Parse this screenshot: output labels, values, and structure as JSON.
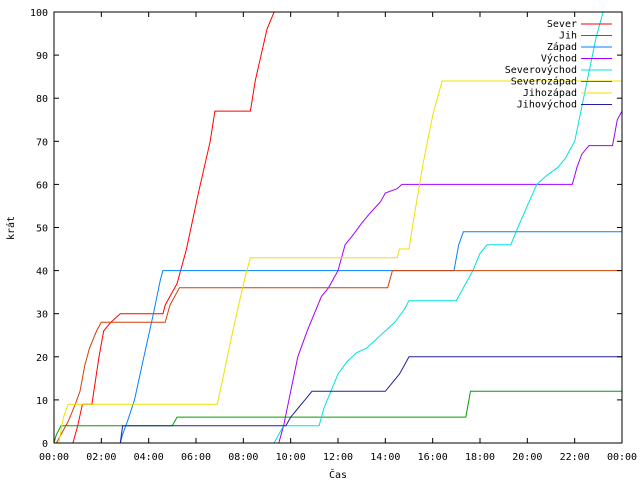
{
  "chart_data": {
    "type": "line",
    "title": "",
    "xlabel": "Čas",
    "ylabel": "krát",
    "xlim": [
      0,
      24
    ],
    "ylim": [
      0,
      100
    ],
    "x_unit": "hours",
    "xticks": [
      "00:00",
      "02:00",
      "04:00",
      "06:00",
      "08:00",
      "10:00",
      "12:00",
      "14:00",
      "16:00",
      "18:00",
      "20:00",
      "22:00",
      "00:00"
    ],
    "yticks": [
      0,
      10,
      20,
      30,
      40,
      50,
      60,
      70,
      80,
      90,
      100
    ],
    "grid": false,
    "legend_position": "top-right",
    "series": [
      {
        "name": "Sever",
        "color": "#ff0000",
        "points": [
          [
            0,
            0
          ],
          [
            0.8,
            0
          ],
          [
            1.0,
            4
          ],
          [
            1.2,
            9
          ],
          [
            1.6,
            9
          ],
          [
            1.9,
            20
          ],
          [
            2.1,
            26
          ],
          [
            2.4,
            28
          ],
          [
            2.6,
            29
          ],
          [
            2.8,
            30
          ],
          [
            4.6,
            30
          ],
          [
            4.7,
            32
          ],
          [
            5.0,
            35
          ],
          [
            5.2,
            37
          ],
          [
            5.6,
            45
          ],
          [
            6.1,
            58
          ],
          [
            6.6,
            70
          ],
          [
            6.8,
            77
          ],
          [
            8.3,
            77
          ],
          [
            8.5,
            84
          ],
          [
            9.0,
            96
          ],
          [
            9.3,
            100
          ]
        ]
      },
      {
        "name": "Jih",
        "color": "#00a000",
        "points": [
          [
            0,
            0
          ],
          [
            0.1,
            2
          ],
          [
            0.3,
            4
          ],
          [
            5.0,
            4
          ],
          [
            5.2,
            6
          ],
          [
            17.4,
            6
          ],
          [
            17.6,
            12
          ],
          [
            24,
            12
          ]
        ]
      },
      {
        "name": "Západ",
        "color": "#0080ff",
        "points": [
          [
            0,
            0
          ],
          [
            2.8,
            0
          ],
          [
            2.9,
            2
          ],
          [
            3.1,
            5
          ],
          [
            3.4,
            10
          ],
          [
            3.8,
            20
          ],
          [
            4.2,
            30
          ],
          [
            4.5,
            38
          ],
          [
            4.6,
            40
          ],
          [
            16.9,
            40
          ],
          [
            17.1,
            46
          ],
          [
            17.3,
            49
          ],
          [
            24,
            49
          ]
        ]
      },
      {
        "name": "Východ",
        "color": "#a000ff",
        "points": [
          [
            0,
            0
          ],
          [
            9.5,
            0
          ],
          [
            9.7,
            4
          ],
          [
            10.0,
            12
          ],
          [
            10.3,
            20
          ],
          [
            10.7,
            26
          ],
          [
            11.0,
            30
          ],
          [
            11.3,
            34
          ],
          [
            11.6,
            36
          ],
          [
            12.0,
            40
          ],
          [
            12.3,
            46
          ],
          [
            12.6,
            48
          ],
          [
            13.0,
            51
          ],
          [
            13.3,
            53
          ],
          [
            13.8,
            56
          ],
          [
            14.0,
            58
          ],
          [
            14.5,
            59
          ],
          [
            14.7,
            60
          ],
          [
            21.9,
            60
          ],
          [
            22.1,
            64
          ],
          [
            22.3,
            67
          ],
          [
            22.6,
            69
          ],
          [
            23.6,
            69
          ],
          [
            23.8,
            75
          ],
          [
            24,
            77
          ]
        ]
      },
      {
        "name": "Severovýchod",
        "color": "#00e0e0",
        "points": [
          [
            0,
            0
          ],
          [
            9.3,
            0
          ],
          [
            9.5,
            2
          ],
          [
            9.7,
            4
          ],
          [
            11.2,
            4
          ],
          [
            11.4,
            8
          ],
          [
            11.7,
            12
          ],
          [
            12.0,
            16
          ],
          [
            12.4,
            19
          ],
          [
            12.8,
            21
          ],
          [
            13.2,
            22
          ],
          [
            13.6,
            24
          ],
          [
            14.0,
            26
          ],
          [
            14.4,
            28
          ],
          [
            14.8,
            31
          ],
          [
            15.0,
            33
          ],
          [
            17.0,
            33
          ],
          [
            17.3,
            36
          ],
          [
            17.7,
            40
          ],
          [
            18.0,
            44
          ],
          [
            18.3,
            46
          ],
          [
            19.3,
            46
          ],
          [
            19.6,
            50
          ],
          [
            20.0,
            55
          ],
          [
            20.4,
            60
          ],
          [
            20.8,
            62
          ],
          [
            21.3,
            64
          ],
          [
            21.6,
            66
          ],
          [
            22.0,
            70
          ],
          [
            22.3,
            78
          ],
          [
            22.6,
            86
          ],
          [
            22.9,
            94
          ],
          [
            23.2,
            100
          ]
        ]
      },
      {
        "name": "Severozápad",
        "color": "#d04000",
        "points": [
          [
            0,
            0
          ],
          [
            0.1,
            0
          ],
          [
            0.3,
            2
          ],
          [
            0.6,
            5
          ],
          [
            0.9,
            9
          ],
          [
            1.1,
            12
          ],
          [
            1.3,
            18
          ],
          [
            1.5,
            22
          ],
          [
            1.8,
            26
          ],
          [
            2.0,
            28
          ],
          [
            4.7,
            28
          ],
          [
            4.9,
            32
          ],
          [
            5.1,
            34
          ],
          [
            5.3,
            36
          ],
          [
            14.1,
            36
          ],
          [
            14.3,
            40
          ],
          [
            24,
            40
          ]
        ]
      },
      {
        "name": "Jihozápad",
        "color": "#f0e000",
        "points": [
          [
            0,
            0
          ],
          [
            0.2,
            0
          ],
          [
            0.4,
            6
          ],
          [
            0.6,
            9
          ],
          [
            6.9,
            9
          ],
          [
            7.1,
            14
          ],
          [
            7.4,
            22
          ],
          [
            7.8,
            32
          ],
          [
            8.1,
            39
          ],
          [
            8.3,
            43
          ],
          [
            14.5,
            43
          ],
          [
            14.6,
            45
          ],
          [
            15.0,
            45
          ],
          [
            15.2,
            52
          ],
          [
            15.6,
            65
          ],
          [
            16.0,
            76
          ],
          [
            16.4,
            84
          ],
          [
            24,
            84
          ]
        ]
      },
      {
        "name": "Jihovýchod",
        "color": "#2020a0",
        "points": [
          [
            0,
            0
          ],
          [
            2.8,
            0
          ],
          [
            2.9,
            4
          ],
          [
            9.8,
            4
          ],
          [
            10.0,
            6
          ],
          [
            10.3,
            8
          ],
          [
            10.6,
            10
          ],
          [
            10.9,
            12
          ],
          [
            14.0,
            12
          ],
          [
            14.3,
            14
          ],
          [
            14.6,
            16
          ],
          [
            14.8,
            18
          ],
          [
            15.0,
            20
          ],
          [
            24,
            20
          ]
        ]
      }
    ]
  }
}
